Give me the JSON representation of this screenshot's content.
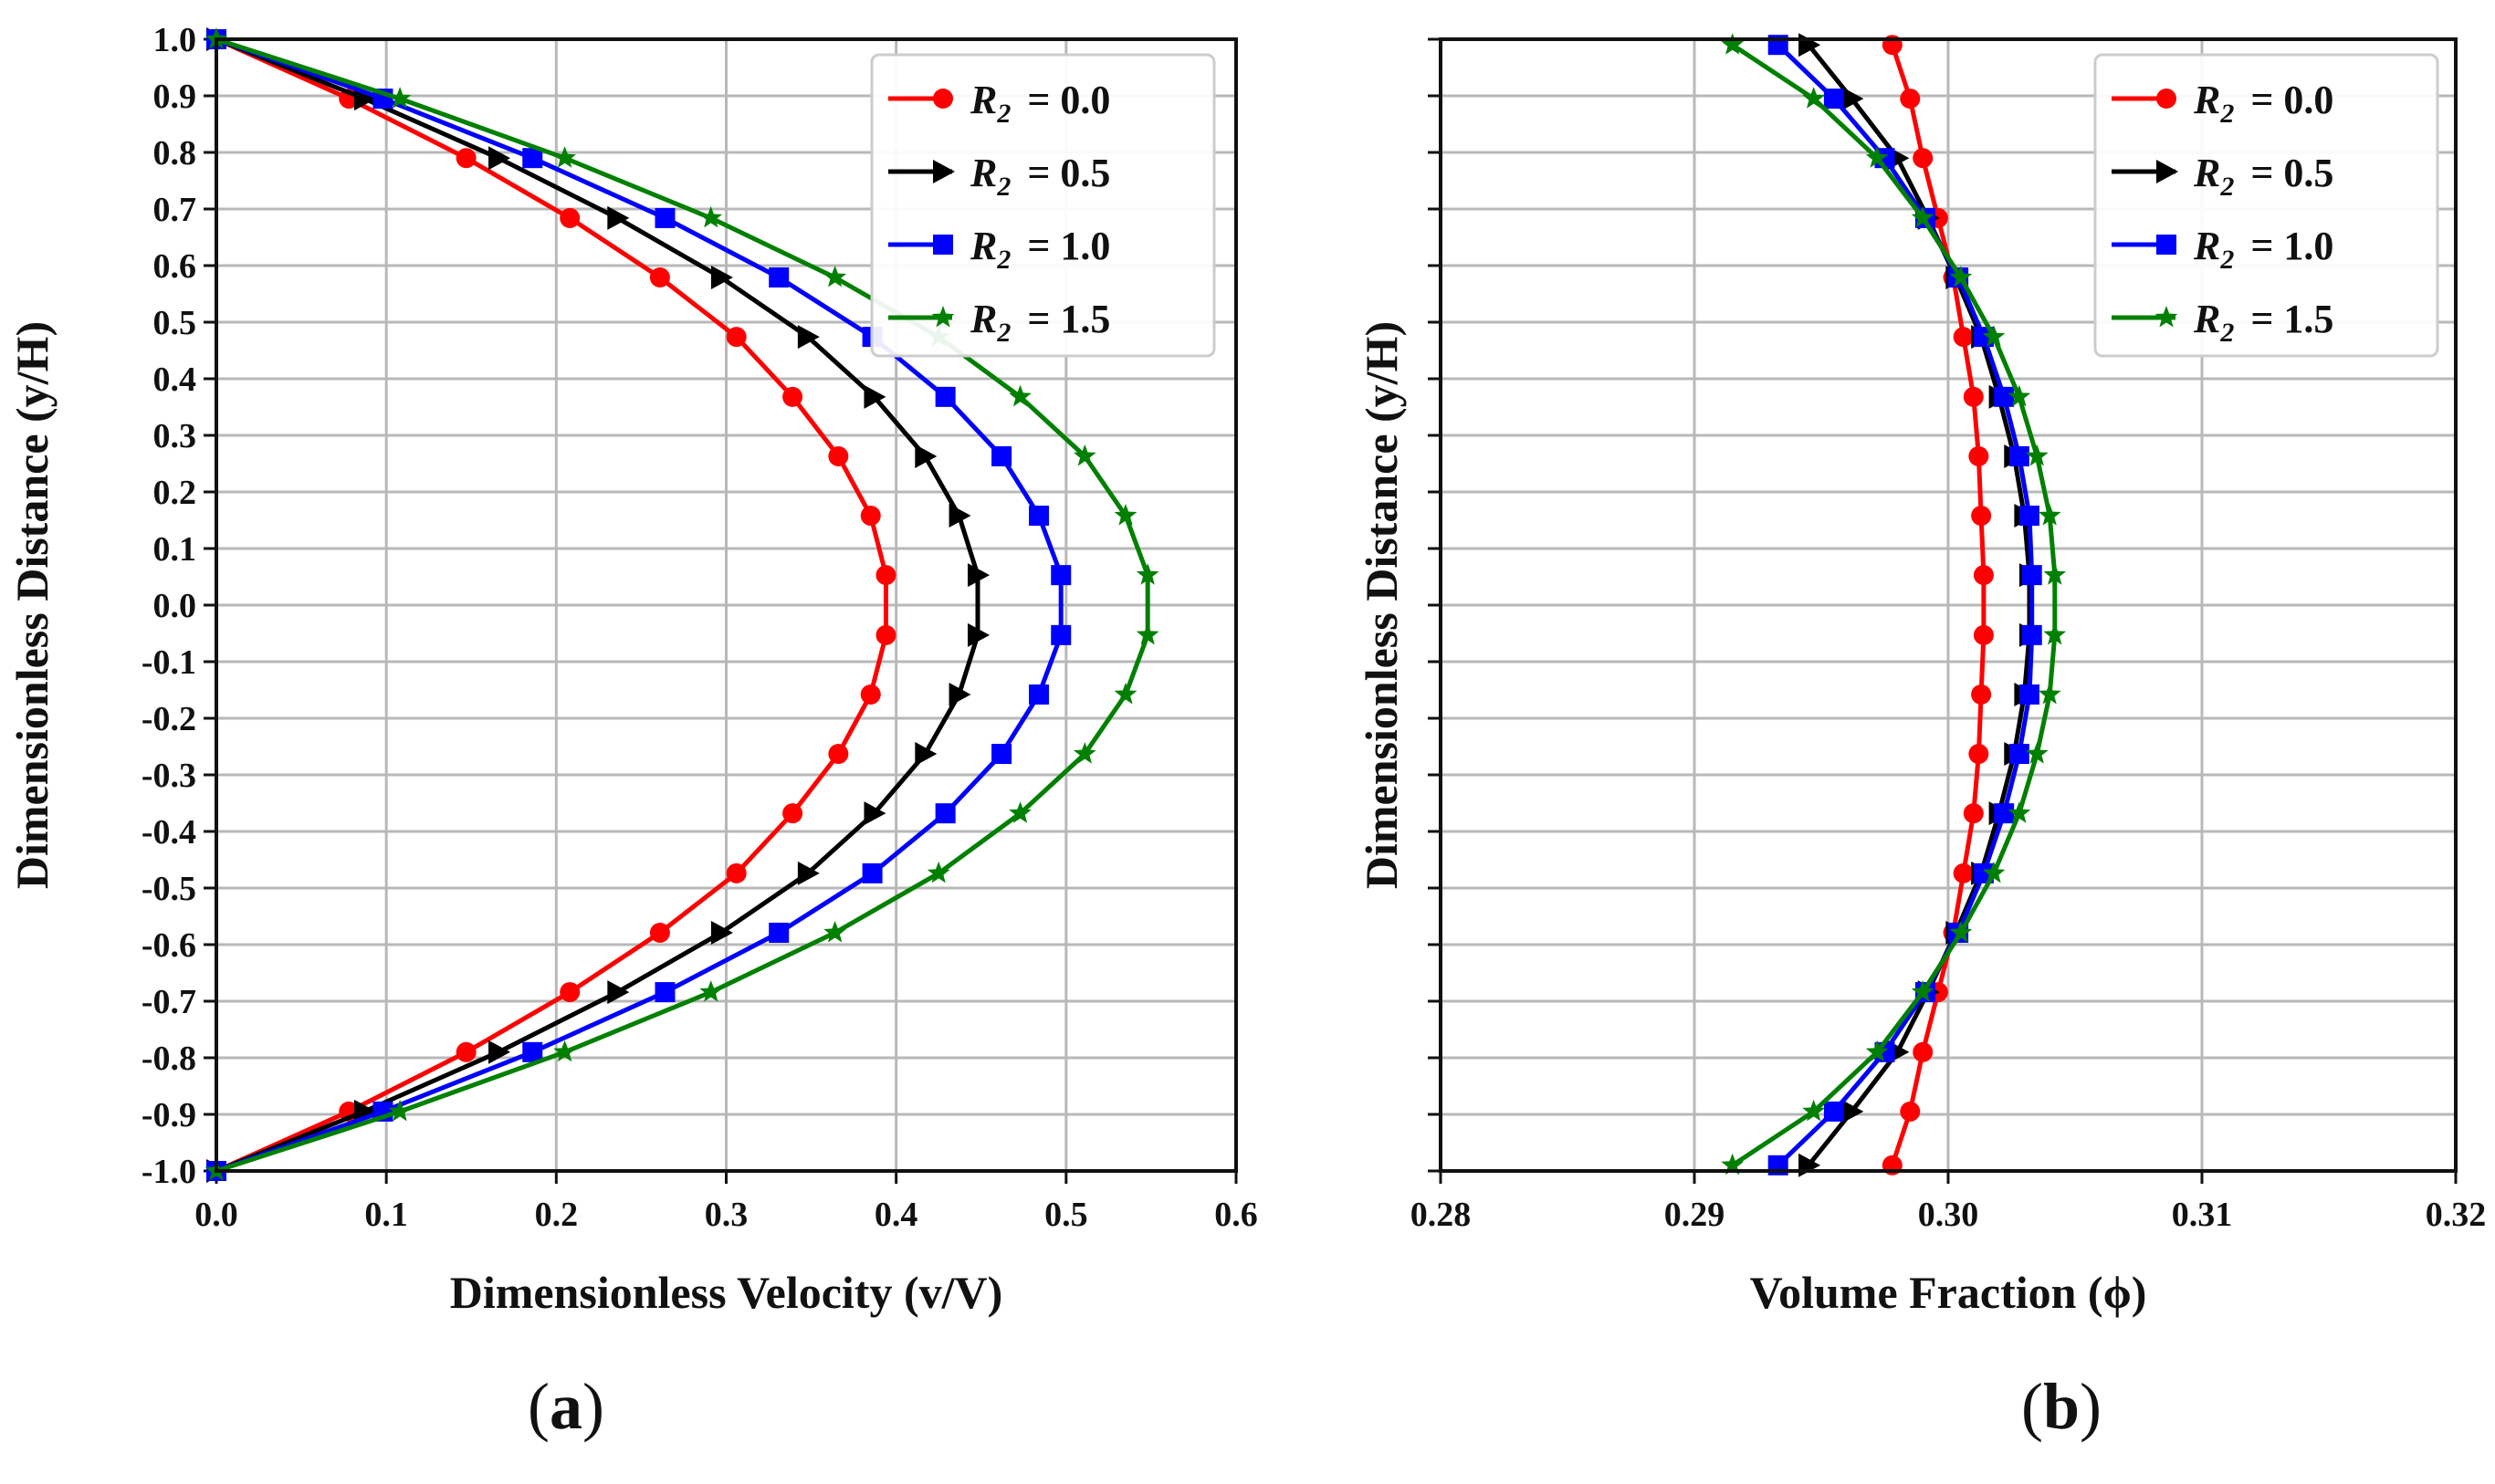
{
  "chart_data": [
    {
      "id": "a",
      "type": "line",
      "panel_label": "a",
      "xlabel": "Dimensionless Velocity (v/V)",
      "ylabel": "Dimensionless Distance (y/H)",
      "xlim": [
        0.0,
        0.6
      ],
      "ylim": [
        -1.0,
        1.0
      ],
      "xticks": [
        "0.0",
        "0.1",
        "0.2",
        "0.3",
        "0.4",
        "0.5",
        "0.6"
      ],
      "yticks": [
        "1.0",
        "0.9",
        "0.8",
        "0.7",
        "0.6",
        "0.5",
        "0.4",
        "0.3",
        "0.2",
        "0.1",
        "0.0",
        "-0.1",
        "-0.2",
        "-0.3",
        "-0.4",
        "-0.5",
        "-0.6",
        "-0.7",
        "-0.8",
        "-0.9",
        "-1.0"
      ],
      "grid": true,
      "legend_position": "top-right",
      "y": [
        1.0,
        0.895,
        0.79,
        0.684,
        0.579,
        0.474,
        0.368,
        0.263,
        0.158,
        0.053,
        -0.053,
        -0.158,
        -0.263,
        -0.368,
        -0.474,
        -0.579,
        -0.684,
        -0.79,
        -0.895,
        -1.0
      ],
      "series": [
        {
          "name": "R2 = 0.0",
          "sym": "R",
          "sub": "2",
          "val": "= 0.0",
          "color": "#ff0000",
          "marker": "circle",
          "values": [
            0.0,
            0.078,
            0.147,
            0.208,
            0.261,
            0.306,
            0.339,
            0.366,
            0.385,
            0.394,
            0.394,
            0.385,
            0.366,
            0.339,
            0.306,
            0.261,
            0.208,
            0.147,
            0.078,
            0.0
          ]
        },
        {
          "name": "R2 = 0.5",
          "sym": "R",
          "sub": "2",
          "val": "= 0.5",
          "color": "#000000",
          "marker": "triangle-right",
          "values": [
            0.0,
            0.087,
            0.166,
            0.236,
            0.297,
            0.348,
            0.387,
            0.417,
            0.437,
            0.448,
            0.448,
            0.437,
            0.417,
            0.387,
            0.348,
            0.297,
            0.236,
            0.166,
            0.087,
            0.0
          ]
        },
        {
          "name": "R2 = 1.0",
          "sym": "R",
          "sub": "2",
          "val": "= 1.0",
          "color": "#0000ff",
          "marker": "square",
          "values": [
            0.0,
            0.098,
            0.186,
            0.264,
            0.331,
            0.386,
            0.429,
            0.462,
            0.484,
            0.497,
            0.497,
            0.484,
            0.462,
            0.429,
            0.386,
            0.331,
            0.264,
            0.186,
            0.098,
            0.0
          ]
        },
        {
          "name": "R2 = 1.5",
          "sym": "R",
          "sub": "2",
          "val": "= 1.5",
          "color": "#008000",
          "marker": "star",
          "values": [
            0.0,
            0.108,
            0.205,
            0.291,
            0.364,
            0.425,
            0.473,
            0.511,
            0.535,
            0.548,
            0.548,
            0.535,
            0.511,
            0.473,
            0.425,
            0.364,
            0.291,
            0.205,
            0.108,
            0.0
          ]
        }
      ]
    },
    {
      "id": "b",
      "type": "line",
      "panel_label": "b",
      "xlabel": "Volume Fraction (ϕ)",
      "ylabel": "Dimensionless Distance (y/H)",
      "xlim": [
        0.28,
        0.32
      ],
      "ylim": [
        -1.0,
        1.0
      ],
      "xticks": [
        "0.28",
        "0.29",
        "0.30",
        "0.31",
        "0.32"
      ],
      "yticks": [],
      "grid": true,
      "legend_position": "top-right",
      "y": [
        0.99,
        0.895,
        0.79,
        0.684,
        0.579,
        0.474,
        0.368,
        0.263,
        0.158,
        0.053,
        -0.053,
        -0.158,
        -0.263,
        -0.368,
        -0.474,
        -0.579,
        -0.684,
        -0.79,
        -0.895,
        -0.99
      ],
      "series": [
        {
          "name": "R2 = 0.0",
          "sym": "R",
          "sub": "2",
          "val": "= 0.0",
          "color": "#ff0000",
          "marker": "circle",
          "values": [
            0.2978,
            0.2985,
            0.299,
            0.2996,
            0.3002,
            0.3006,
            0.301,
            0.3012,
            0.3013,
            0.3014,
            0.3014,
            0.3013,
            0.3012,
            0.301,
            0.3006,
            0.3002,
            0.2996,
            0.299,
            0.2985,
            0.2978
          ]
        },
        {
          "name": "R2 = 0.5",
          "sym": "R",
          "sub": "2",
          "val": "= 0.5",
          "color": "#000000",
          "marker": "triangle-right",
          "values": [
            0.2945,
            0.2962,
            0.298,
            0.2992,
            0.3003,
            0.3013,
            0.302,
            0.3026,
            0.303,
            0.3032,
            0.3032,
            0.303,
            0.3026,
            0.302,
            0.3013,
            0.3003,
            0.2992,
            0.298,
            0.2962,
            0.2945
          ]
        },
        {
          "name": "R2 = 1.0",
          "sym": "R",
          "sub": "2",
          "val": "= 1.0",
          "color": "#0000ff",
          "marker": "square",
          "values": [
            0.2933,
            0.2955,
            0.2975,
            0.2991,
            0.3004,
            0.3014,
            0.3022,
            0.3028,
            0.3032,
            0.3033,
            0.3033,
            0.3032,
            0.3028,
            0.3022,
            0.3014,
            0.3004,
            0.2991,
            0.2975,
            0.2955,
            0.2933
          ]
        },
        {
          "name": "R2 = 1.5",
          "sym": "R",
          "sub": "2",
          "val": "= 1.5",
          "color": "#008000",
          "marker": "star",
          "values": [
            0.2915,
            0.2947,
            0.2972,
            0.299,
            0.3005,
            0.3018,
            0.3028,
            0.3035,
            0.304,
            0.3042,
            0.3042,
            0.304,
            0.3035,
            0.3028,
            0.3018,
            0.3005,
            0.299,
            0.2972,
            0.2947,
            0.2915
          ]
        }
      ]
    }
  ]
}
